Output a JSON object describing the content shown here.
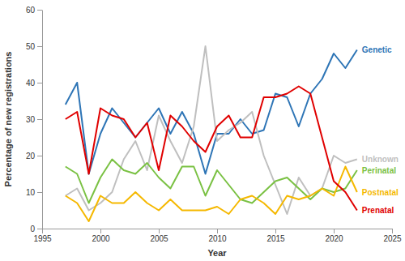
{
  "chart_data": {
    "type": "line",
    "x_label": "Year",
    "y_label": "Percentage of new registrations",
    "x": [
      1997,
      1998,
      1999,
      2000,
      2001,
      2002,
      2003,
      2004,
      2005,
      2006,
      2007,
      2008,
      2009,
      2010,
      2011,
      2012,
      2013,
      2014,
      2015,
      2016,
      2017,
      2018,
      2019,
      2020,
      2021,
      2022
    ],
    "series": [
      {
        "name": "Genetic",
        "color": "#2e75b6",
        "values": [
          34,
          40,
          15,
          26,
          33,
          29,
          25,
          29,
          33,
          26,
          32,
          26,
          15,
          26,
          26,
          30,
          26,
          27,
          37,
          36,
          28,
          37,
          41,
          48,
          44,
          49
        ]
      },
      {
        "name": "Unknown",
        "color": "#bfbfbf",
        "values": [
          9,
          11,
          5,
          7,
          10,
          19,
          24,
          16,
          31,
          24,
          18,
          28,
          50,
          24,
          27,
          29,
          32,
          20,
          12,
          4,
          14,
          9,
          11,
          20,
          18,
          19
        ]
      },
      {
        "name": "Perinatal",
        "color": "#7ac143",
        "values": [
          17,
          15,
          7,
          14,
          19,
          16,
          15,
          18,
          14,
          11,
          17,
          17,
          9,
          16,
          12,
          8,
          7,
          10,
          13,
          14,
          11,
          8,
          11,
          10,
          11,
          16
        ]
      },
      {
        "name": "Postnatal",
        "color": "#f5b800",
        "values": [
          9,
          7,
          2,
          9,
          7,
          7,
          10,
          7,
          5,
          8,
          5,
          5,
          5,
          6,
          4,
          8,
          9,
          7,
          4,
          9,
          8,
          9,
          11,
          9,
          17,
          10
        ]
      },
      {
        "name": "Prenatal",
        "color": "#e00000",
        "values": [
          30,
          32,
          15,
          33,
          31,
          30,
          25,
          29,
          16,
          31,
          28,
          24,
          21,
          28,
          31,
          25,
          25,
          36,
          36,
          37,
          39,
          37,
          25,
          13,
          10,
          5
        ]
      }
    ],
    "xlim": [
      1995,
      2025
    ],
    "xticks": [
      1995,
      2000,
      2005,
      2010,
      2015,
      2020,
      2025
    ],
    "ylim": [
      0,
      60
    ],
    "yticks": [
      0,
      10,
      20,
      30,
      40,
      50,
      60
    ],
    "grid": false
  }
}
